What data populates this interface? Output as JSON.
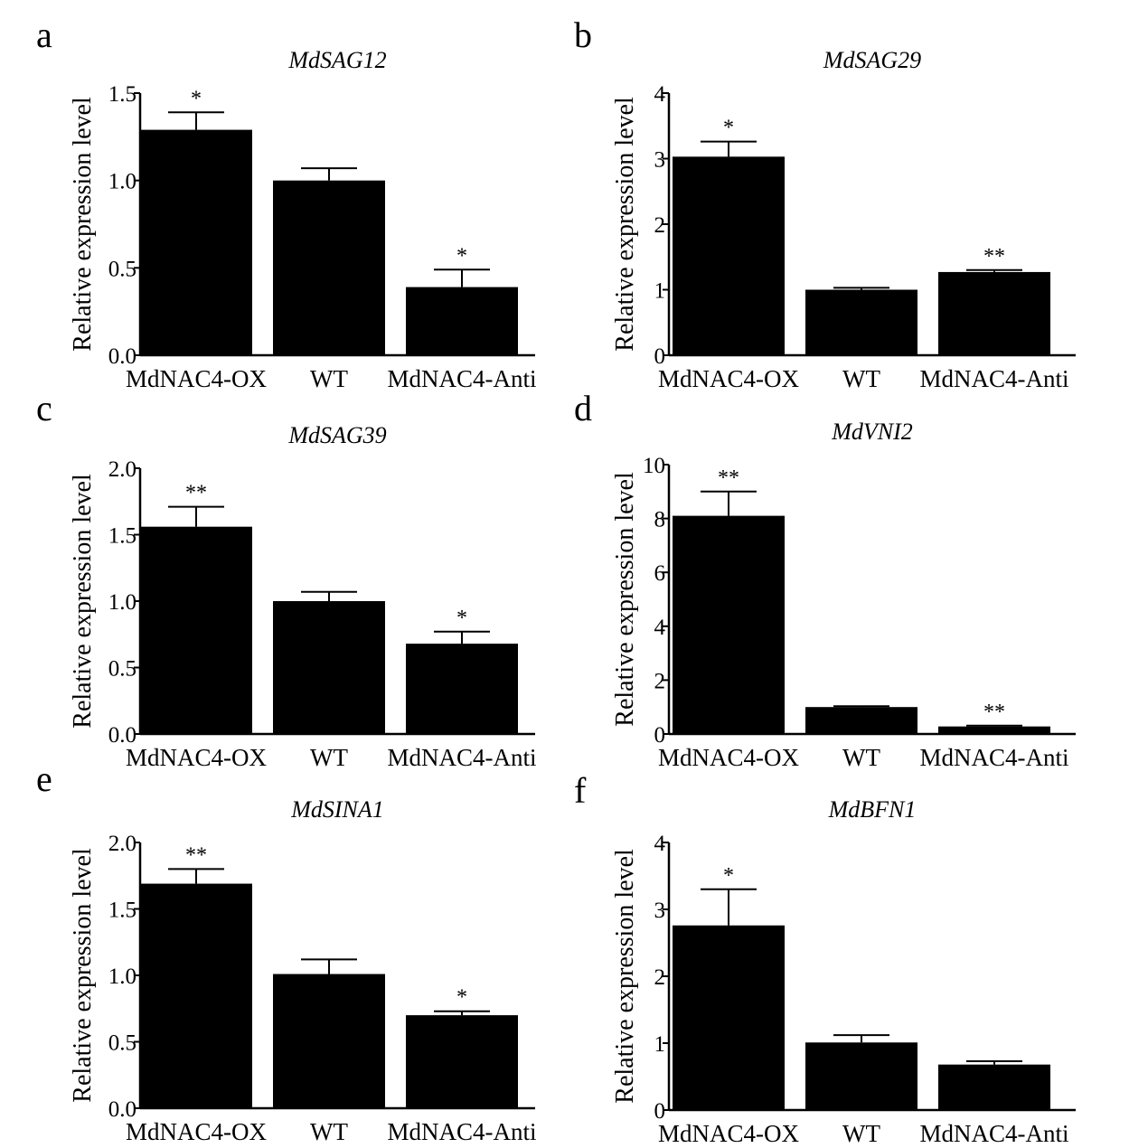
{
  "chart_data": [
    {
      "panel": "a",
      "type": "bar",
      "title": "MdSAG12",
      "ylabel": "Relative expression level",
      "categories": [
        "MdNAC4-OX",
        "WT",
        "MdNAC4-Anti"
      ],
      "values": [
        1.29,
        1.0,
        0.39
      ],
      "errors": [
        0.1,
        0.07,
        0.1
      ],
      "significance": [
        "*",
        "",
        "*"
      ],
      "ylim": [
        0,
        1.5
      ],
      "yticks": [
        "0.0",
        "0.5",
        "1.0",
        "1.5"
      ]
    },
    {
      "panel": "b",
      "type": "bar",
      "title": "MdSAG29",
      "ylabel": "Relative expression level",
      "categories": [
        "MdNAC4-OX",
        "WT",
        "MdNAC4-Anti"
      ],
      "values": [
        3.03,
        1.0,
        1.27
      ],
      "errors": [
        0.23,
        0.03,
        0.03
      ],
      "significance": [
        "*",
        "",
        "**"
      ],
      "ylim": [
        0,
        4
      ],
      "yticks": [
        "0",
        "1",
        "2",
        "3",
        "4"
      ]
    },
    {
      "panel": "c",
      "type": "bar",
      "title": "MdSAG39",
      "ylabel": "Relative expression level",
      "categories": [
        "MdNAC4-OX",
        "WT",
        "MdNAC4-Anti"
      ],
      "values": [
        1.56,
        1.0,
        0.68
      ],
      "errors": [
        0.15,
        0.07,
        0.09
      ],
      "significance": [
        "**",
        "",
        "*"
      ],
      "ylim": [
        0,
        2.0
      ],
      "yticks": [
        "0.0",
        "0.5",
        "1.0",
        "1.5",
        "2.0"
      ]
    },
    {
      "panel": "d",
      "type": "bar",
      "title": "MdVNI2",
      "ylabel": "Relative expression level",
      "categories": [
        "MdNAC4-OX",
        "WT",
        "MdNAC4-Anti"
      ],
      "values": [
        8.1,
        1.0,
        0.28
      ],
      "errors": [
        0.9,
        0.03,
        0.03
      ],
      "significance": [
        "**",
        "",
        "**"
      ],
      "ylim": [
        0,
        10
      ],
      "yticks": [
        "0",
        "2",
        "4",
        "6",
        "8",
        "10"
      ]
    },
    {
      "panel": "e",
      "type": "bar",
      "title": "MdSINA1",
      "ylabel": "Relative expression level",
      "categories": [
        "MdNAC4-OX",
        "WT",
        "MdNAC4-Anti"
      ],
      "values": [
        1.69,
        1.01,
        0.7
      ],
      "errors": [
        0.11,
        0.11,
        0.03
      ],
      "significance": [
        "**",
        "",
        "*"
      ],
      "ylim": [
        0,
        2.0
      ],
      "yticks": [
        "0.0",
        "0.5",
        "1.0",
        "1.5",
        "2.0"
      ]
    },
    {
      "panel": "f",
      "type": "bar",
      "title": "MdBFN1",
      "ylabel": "Relative expression level",
      "categories": [
        "MdNAC4-OX",
        "WT",
        "MdNAC4-Anti"
      ],
      "values": [
        2.76,
        1.01,
        0.68
      ],
      "errors": [
        0.54,
        0.11,
        0.05
      ],
      "significance": [
        "*",
        "",
        ""
      ],
      "ylim": [
        0,
        4
      ],
      "yticks": [
        "0",
        "1",
        "2",
        "3",
        "4"
      ]
    }
  ],
  "colors": {
    "bar": "#000000",
    "axis": "#000000",
    "background": "#ffffff"
  }
}
